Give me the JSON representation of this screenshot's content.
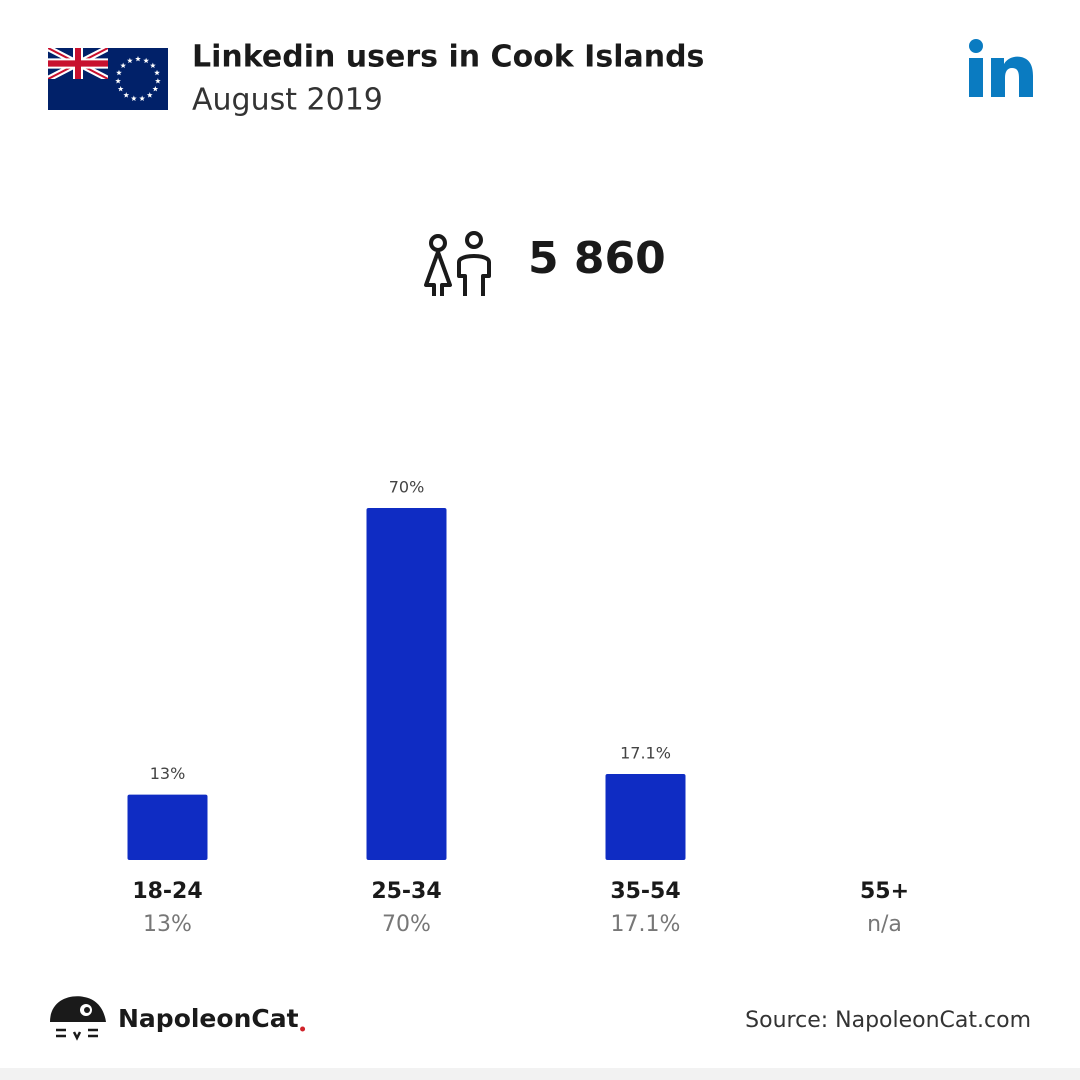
{
  "chart_data": {
    "type": "bar",
    "title": "Linkedin users in Cook Islands",
    "subtitle": "August 2019",
    "total": "5 860",
    "categories": [
      "18-24",
      "25-34",
      "35-54",
      "55+"
    ],
    "values": [
      13,
      70,
      17.1,
      null
    ],
    "value_labels": [
      "13%",
      "70%",
      "17.1%",
      "n/a"
    ],
    "color": "#0f2cc3",
    "ylim": [
      0,
      70
    ],
    "brand": "NapoleonCat",
    "source": "Source: NapoleonCat.com"
  }
}
